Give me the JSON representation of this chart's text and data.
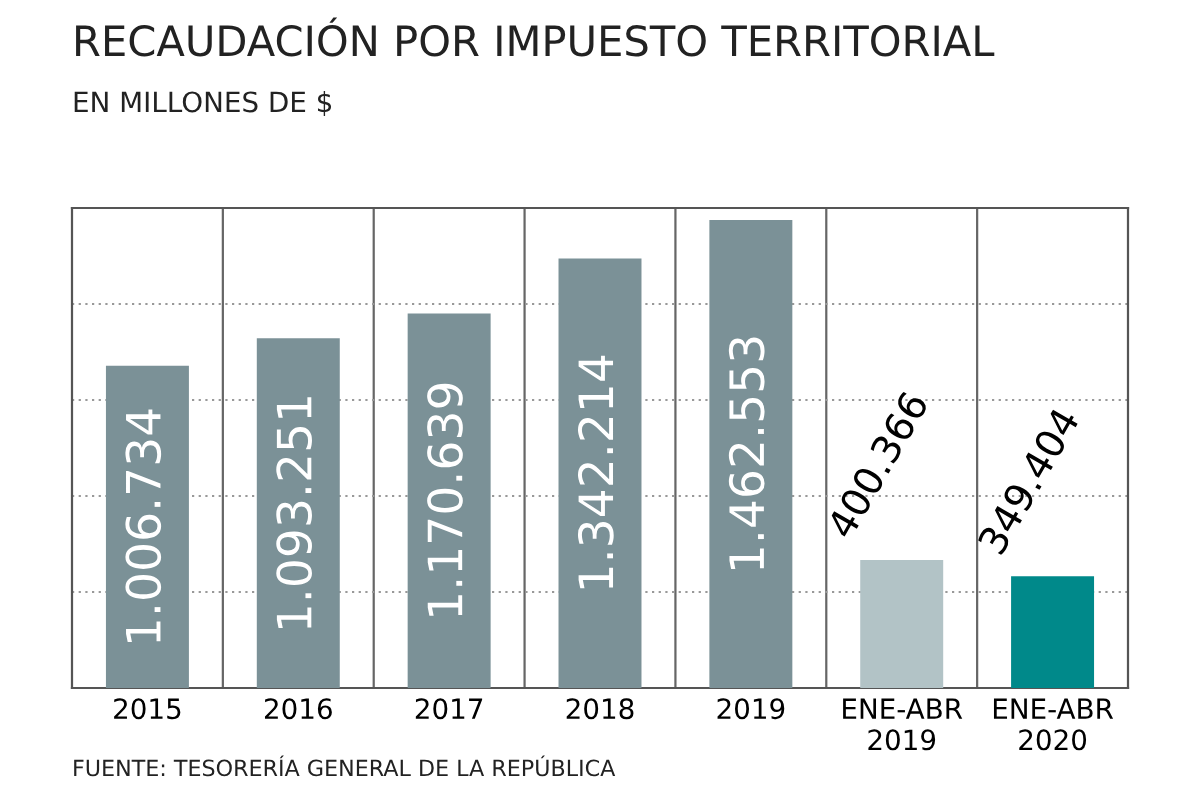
{
  "chart_data": {
    "type": "bar",
    "title": "RECAUDACIÓN POR IMPUESTO TERRITORIAL",
    "subtitle": "EN MILLONES DE $",
    "categories": [
      "2015",
      "2016",
      "2017",
      "2018",
      "2019",
      "ENE-ABR\n2019",
      "ENE-ABR\n2020"
    ],
    "values": [
      1006734,
      1093251,
      1170639,
      1342214,
      1462553,
      400366,
      349404
    ],
    "value_labels": [
      "1.006.734",
      "1.093.251",
      "1.170.639",
      "1.342.214",
      "1.462.553",
      "400.366",
      "349.404"
    ],
    "colors": [
      "#7b9197",
      "#7b9197",
      "#7b9197",
      "#7b9197",
      "#7b9197",
      "#b2c3c6",
      "#00898a"
    ],
    "ylim": [
      0,
      1500000
    ],
    "yticks": [
      {
        "value": 0,
        "label": null
      },
      {
        "value": 300000,
        "label": null
      },
      {
        "value": 600000,
        "label": null
      },
      {
        "value": 900000,
        "label": null
      },
      {
        "value": 1200000,
        "label": null
      },
      {
        "value": 1500000,
        "label": null
      }
    ],
    "tick_labels": "x",
    "grid": true,
    "annotations": [
      "FUENTE: TESORERÍA GENERAL DE LA REPÚBLICA"
    ]
  }
}
